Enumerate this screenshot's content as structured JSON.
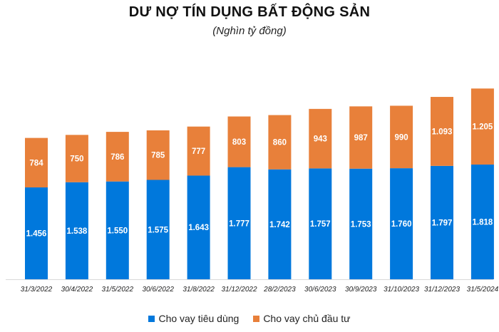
{
  "chart_data": {
    "type": "bar",
    "stacked": true,
    "title": "DƯ NỢ TÍN DỤNG BẤT ĐỘNG SẢN",
    "subtitle": "(Nghìn tỷ đồng)",
    "xlabel": "",
    "ylabel": "",
    "ylim": [
      0,
      3500
    ],
    "grid": false,
    "legend_position": "bottom",
    "categories": [
      "31/3/2022",
      "30/4/2022",
      "31/5/2022",
      "30/6/2022",
      "31/8/2022",
      "31/12/2022",
      "28/2/2023",
      "30/6/2023",
      "30/9/2023",
      "31/10/2023",
      "31/12/2023",
      "31/5/2024"
    ],
    "series": [
      {
        "name": "Cho vay tiêu dùng",
        "color": "#0078DC",
        "values": [
          1456,
          1538,
          1550,
          1575,
          1643,
          1777,
          1742,
          1757,
          1753,
          1760,
          1797,
          1818
        ],
        "labels": [
          "1.456",
          "1.538",
          "1.550",
          "1.575",
          "1.643",
          "1.777",
          "1.742",
          "1.757",
          "1.753",
          "1.760",
          "1.797",
          "1.818"
        ]
      },
      {
        "name": "Cho vay chủ đầu tư",
        "color": "#E8803A",
        "values": [
          784,
          750,
          786,
          785,
          777,
          803,
          860,
          943,
          987,
          990,
          1093,
          1205
        ],
        "labels": [
          "784",
          "750",
          "786",
          "785",
          "777",
          "803",
          "860",
          "943",
          "987",
          "990",
          "1.093",
          "1.205"
        ]
      }
    ]
  }
}
